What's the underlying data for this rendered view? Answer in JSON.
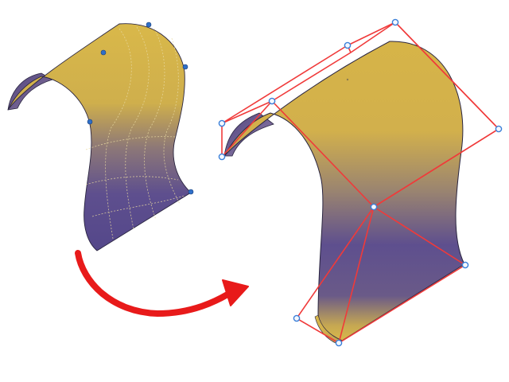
{
  "illustration": {
    "surface_colors": {
      "gold": "#D9B84A",
      "gold_light": "#E7CC68",
      "purple": "#5E4F8E",
      "purple_dark": "#4E427C",
      "edge": "#2A2540"
    },
    "control_frame_color": "#F03A3A",
    "control_point_color": "#3A7FD8",
    "arrow_color": "#E81A1A",
    "before_control_point_count": 6,
    "after_control_point_count": 10
  }
}
